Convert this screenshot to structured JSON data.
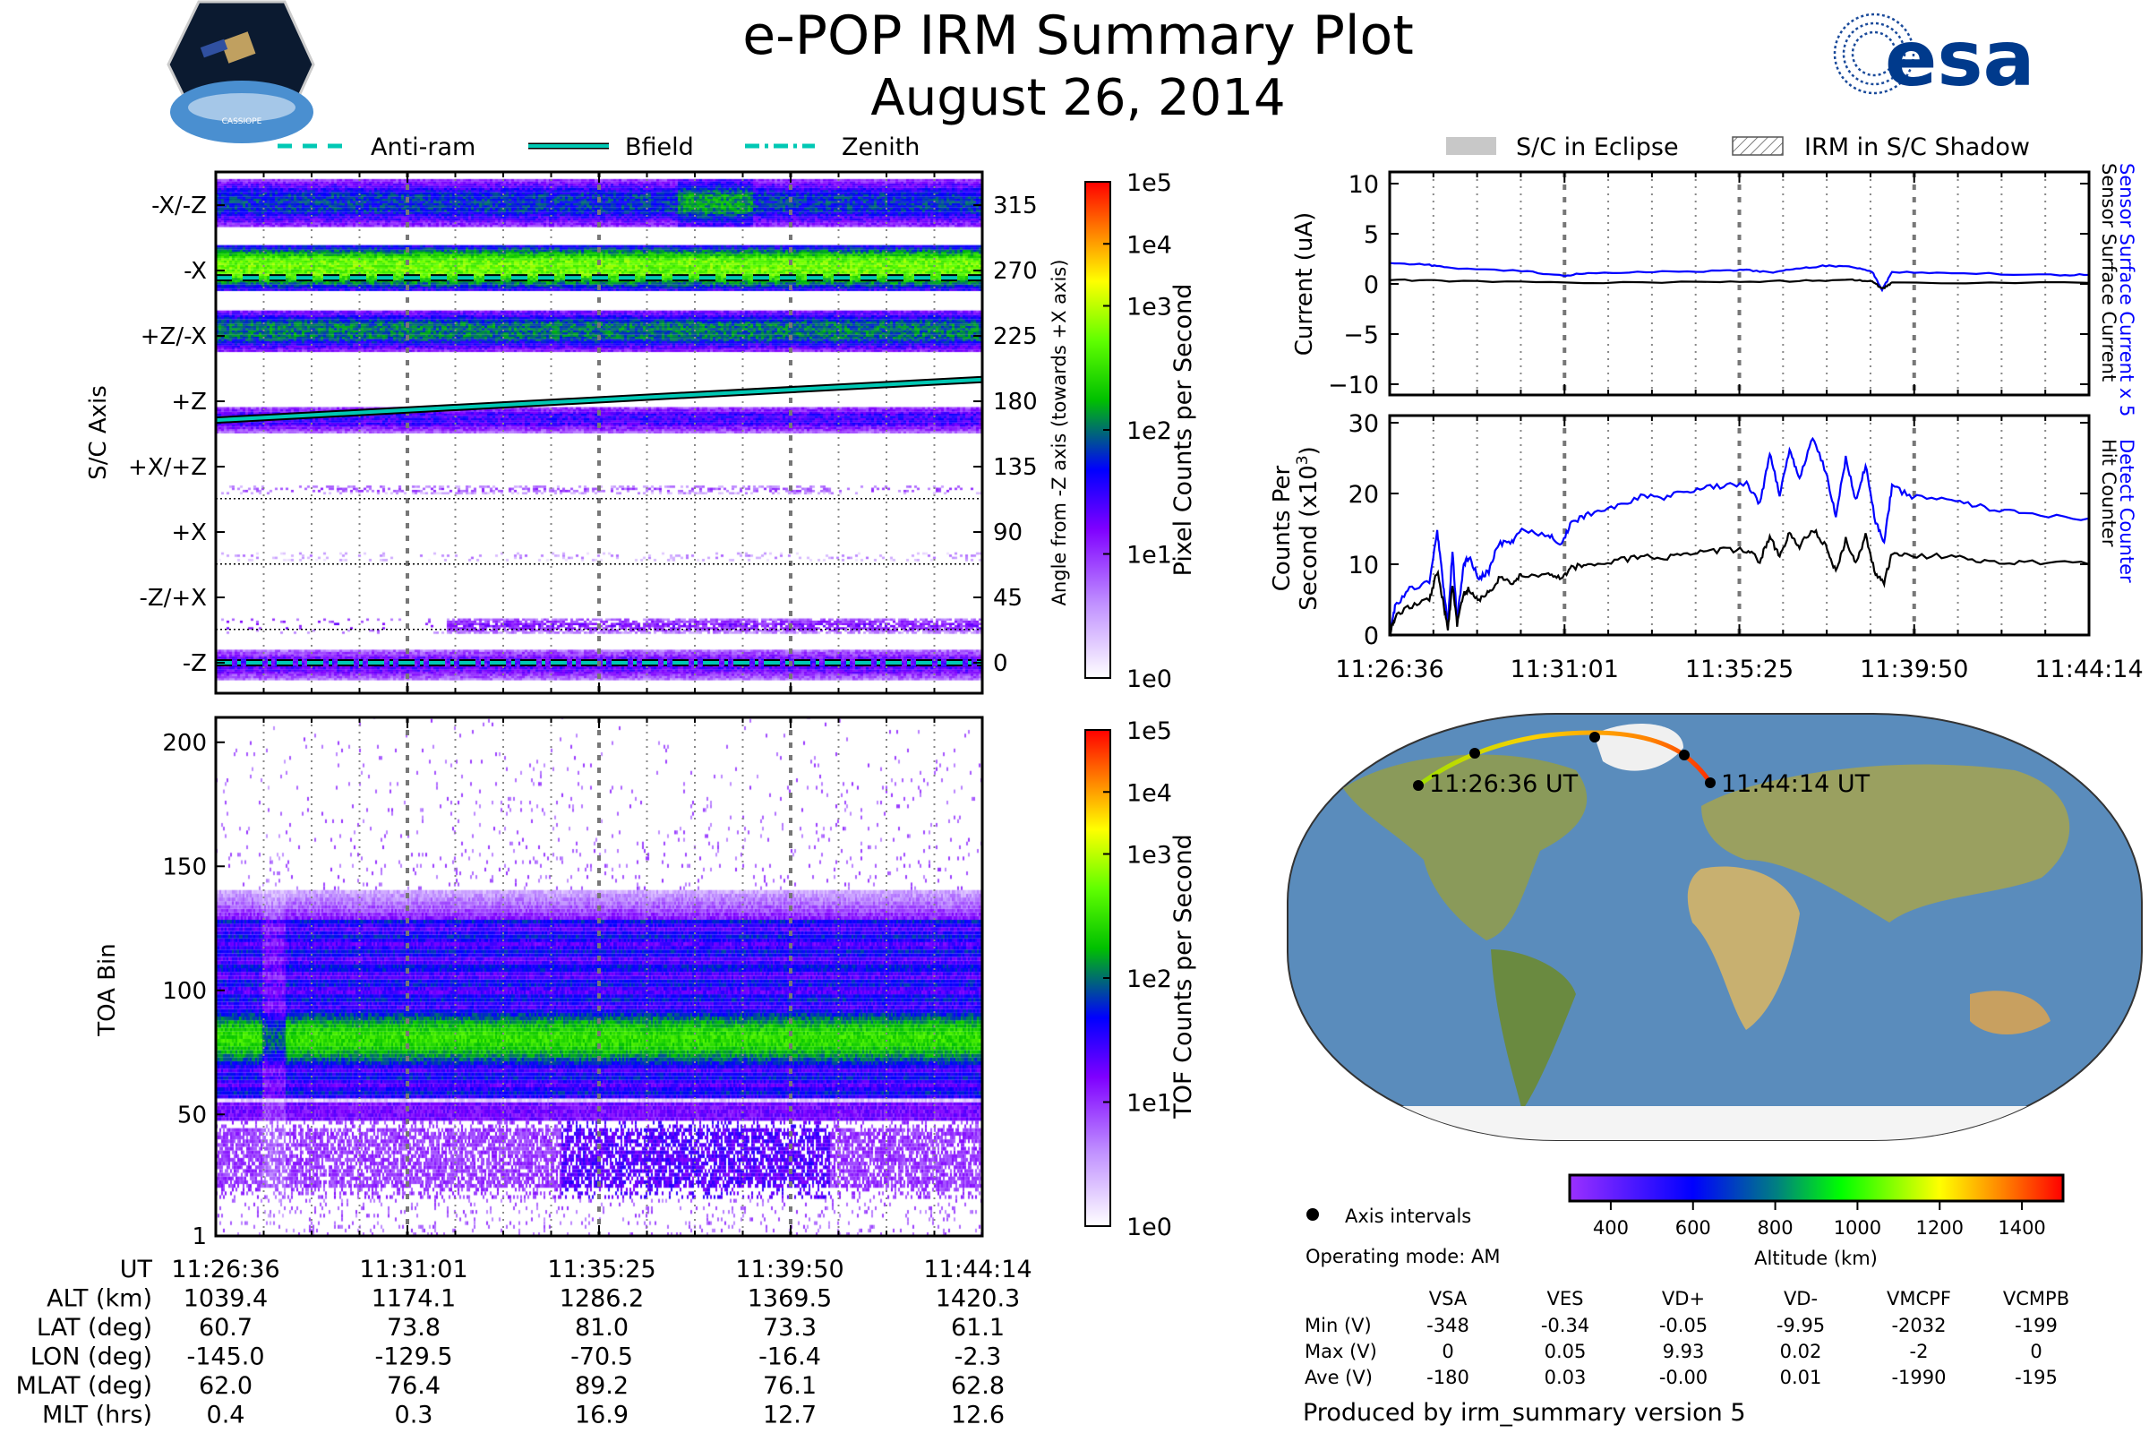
{
  "header": {
    "title": "e-POP IRM Summary Plot",
    "date": "August 26, 2014",
    "left_logo_text": "CASSIOPE",
    "right_logo_text": "esa"
  },
  "legend_left": [
    {
      "label": "Anti-ram",
      "style": "dashed"
    },
    {
      "label": "Bfield",
      "style": "solid"
    },
    {
      "label": "Zenith",
      "style": "dash-dot"
    }
  ],
  "legend_right": [
    {
      "label": "S/C in Eclipse"
    },
    {
      "label": "IRM in S/C Shadow"
    }
  ],
  "colors": {
    "line_accent": "#00c8b4",
    "blue": "#0000ff",
    "black": "#000000"
  },
  "chart_data": [
    {
      "type": "heatmap",
      "name": "pixel-spectrogram",
      "ylabel": "S/C Axis",
      "ylabel_right": "Angle from -Z axis (towards +X axis)",
      "y_axis_labels": [
        "-X/-Z",
        "-X",
        "+Z/-X",
        "+Z",
        "+X/+Z",
        "+X",
        "-Z/+X",
        "-Z"
      ],
      "y_ticks_right": [
        "315",
        "270",
        "225",
        "180",
        "135",
        "90",
        "45",
        "0"
      ],
      "y_tick_values": [
        315,
        270,
        225,
        180,
        135,
        90,
        45,
        0
      ],
      "ylim": [
        -10,
        330
      ],
      "x_range_seconds": [
        0,
        1058
      ],
      "colorbar": {
        "label": "Pixel Counts per Second",
        "ticks": [
          "1e5",
          "1e4",
          "1e3",
          "1e2",
          "1e1",
          "1e0"
        ]
      },
      "overlays": {
        "anti_ram_deg": [
          265,
          265
        ],
        "bfield_deg": [
          167,
          195
        ],
        "zenith_deg": [
          0,
          0
        ]
      }
    },
    {
      "type": "heatmap",
      "name": "tof-spectrogram",
      "ylabel": "TOA Bin",
      "y_ticks": [
        "1",
        "50",
        "100",
        "150",
        "200"
      ],
      "y_tick_values": [
        1,
        50,
        100,
        150,
        200
      ],
      "ylim": [
        1,
        210
      ],
      "colorbar": {
        "label": "TOF Counts per Second",
        "ticks": [
          "1e5",
          "1e4",
          "1e3",
          "1e2",
          "1e1",
          "1e0"
        ]
      }
    },
    {
      "type": "line",
      "name": "current-plot",
      "ylabel": "Current (uA)",
      "y_ticks": [
        "10",
        "5",
        "0",
        "−5",
        "−10"
      ],
      "y_tick_values": [
        10,
        5,
        0,
        -5,
        -10
      ],
      "ylim": [
        -11,
        11
      ],
      "x_ticks": [
        "11:26:36",
        "11:31:01",
        "11:35:25",
        "11:39:50",
        "11:44:14"
      ],
      "series": [
        {
          "name": "Sensor Surface Current x 5",
          "color": "#0000ff",
          "x": [
            0,
            60,
            90,
            200,
            265,
            300,
            400,
            500,
            540,
            580,
            620,
            660,
            700,
            730,
            745,
            760,
            850,
            1000,
            1058
          ],
          "y": [
            2.1,
            1.9,
            1.6,
            1.3,
            0.8,
            1.1,
            1.2,
            1.3,
            1.4,
            1.1,
            1.6,
            1.8,
            1.7,
            1.2,
            -0.6,
            1.2,
            1.1,
            0.9,
            0.9
          ]
        },
        {
          "name": "Sensor Surface Current",
          "color": "#000000",
          "x": [
            0,
            90,
            265,
            500,
            620,
            700,
            730,
            745,
            760,
            1058
          ],
          "y": [
            0.4,
            0.3,
            0.1,
            0.2,
            0.3,
            0.4,
            0.3,
            -0.5,
            0.1,
            0.1
          ]
        }
      ]
    },
    {
      "type": "line",
      "name": "counts-plot",
      "ylabel": "Counts Per Second (x10³)",
      "ylabel_line1": "Counts Per",
      "ylabel_line2": "Second (x10",
      "ylabel_sup": "3",
      "ylabel_close": ")",
      "y_ticks": [
        "30",
        "20",
        "10",
        "0"
      ],
      "y_tick_values": [
        30,
        20,
        10,
        0
      ],
      "ylim": [
        0,
        30
      ],
      "x_ticks": [
        "11:26:36",
        "11:31:01",
        "11:35:25",
        "11:39:50",
        "11:44:14"
      ],
      "series": [
        {
          "name": "Detect Counter",
          "color": "#0000ff",
          "x": [
            0,
            8,
            30,
            60,
            72,
            80,
            88,
            95,
            102,
            112,
            120,
            135,
            150,
            165,
            185,
            200,
            240,
            260,
            275,
            300,
            340,
            380,
            420,
            460,
            500,
            540,
            560,
            575,
            590,
            605,
            620,
            640,
            660,
            675,
            690,
            705,
            720,
            735,
            748,
            760,
            790,
            850,
            900,
            960,
            1058
          ],
          "y": [
            0,
            4,
            6.5,
            7.5,
            14.5,
            8,
            1.5,
            12,
            2,
            10,
            11,
            8,
            9,
            13,
            13,
            15,
            14,
            13,
            16,
            17,
            18,
            19.5,
            19.5,
            20.5,
            21,
            21.5,
            18.5,
            25.5,
            20,
            26,
            22,
            28,
            23,
            17,
            25,
            19,
            24,
            16,
            13,
            21,
            19.5,
            19.2,
            18,
            17,
            16.5
          ]
        },
        {
          "name": "Hit Counter",
          "color": "#000000",
          "x": [
            0,
            8,
            30,
            60,
            72,
            80,
            88,
            95,
            102,
            112,
            120,
            135,
            150,
            165,
            185,
            200,
            240,
            260,
            275,
            300,
            340,
            380,
            420,
            460,
            500,
            540,
            560,
            575,
            590,
            605,
            620,
            640,
            660,
            675,
            690,
            705,
            720,
            735,
            748,
            760,
            790,
            850,
            900,
            960,
            1058
          ],
          "y": [
            0,
            2.5,
            4,
            5,
            9,
            5,
            1,
            7,
            1.5,
            6,
            6.5,
            5,
            6,
            8,
            7.5,
            8.5,
            8.5,
            8,
            9.5,
            10,
            10.5,
            11,
            11,
            11.5,
            12,
            12,
            10.5,
            14,
            11,
            14.5,
            12.5,
            15,
            12.5,
            9,
            13.5,
            10,
            14,
            8.5,
            7.5,
            11.5,
            11.2,
            11.2,
            10.5,
            10.2,
            10
          ]
        }
      ]
    },
    {
      "type": "map",
      "name": "orbit-map",
      "track_labels": [
        "11:26:36 UT",
        "11:44:14 UT"
      ],
      "track_points": [
        {
          "lat": 60.7,
          "lon": -145.0
        },
        {
          "lat": 73.8,
          "lon": -129.5
        },
        {
          "lat": 81.0,
          "lon": -70.5
        },
        {
          "lat": 73.3,
          "lon": -16.4
        },
        {
          "lat": 61.1,
          "lon": -2.3
        }
      ],
      "colorbar": {
        "label": "Altitude (km)",
        "ticks": [
          "400",
          "600",
          "800",
          "1000",
          "1200",
          "1400"
        ],
        "range": [
          300,
          1500
        ]
      },
      "legend_marker_label": "Axis intervals"
    }
  ],
  "ephemeris": {
    "rows": [
      {
        "label": "UT",
        "values": [
          "11:26:36",
          "11:31:01",
          "11:35:25",
          "11:39:50",
          "11:44:14"
        ]
      },
      {
        "label": "ALT (km)",
        "values": [
          "1039.4",
          "1174.1",
          "1286.2",
          "1369.5",
          "1420.3"
        ]
      },
      {
        "label": "LAT (deg)",
        "values": [
          "60.7",
          "73.8",
          "81.0",
          "73.3",
          "61.1"
        ]
      },
      {
        "label": "LON (deg)",
        "values": [
          "-145.0",
          "-129.5",
          "-70.5",
          "-16.4",
          "-2.3"
        ]
      },
      {
        "label": "MLAT (deg)",
        "values": [
          "62.0",
          "76.4",
          "89.2",
          "76.1",
          "62.8"
        ]
      },
      {
        "label": "MLT (hrs)",
        "values": [
          "0.4",
          "0.3",
          "16.9",
          "12.7",
          "12.6"
        ]
      }
    ]
  },
  "info": {
    "operating_mode": "Operating mode: AM",
    "produced_by": "Produced by irm_summary version 5"
  },
  "voltages": {
    "columns": [
      "VSA",
      "VES",
      "VD+",
      "VD-",
      "VMCPF",
      "VCMPB"
    ],
    "rows": [
      {
        "label": "Min (V)",
        "values": [
          "-348",
          "-0.34",
          "-0.05",
          "-9.95",
          "-2032",
          "-199"
        ]
      },
      {
        "label": "Max (V)",
        "values": [
          "0",
          "0.05",
          "9.93",
          "0.02",
          "-2",
          "0"
        ]
      },
      {
        "label": "Ave (V)",
        "values": [
          "-180",
          "0.03",
          "-0.00",
          "0.01",
          "-1990",
          "-195"
        ]
      }
    ]
  }
}
